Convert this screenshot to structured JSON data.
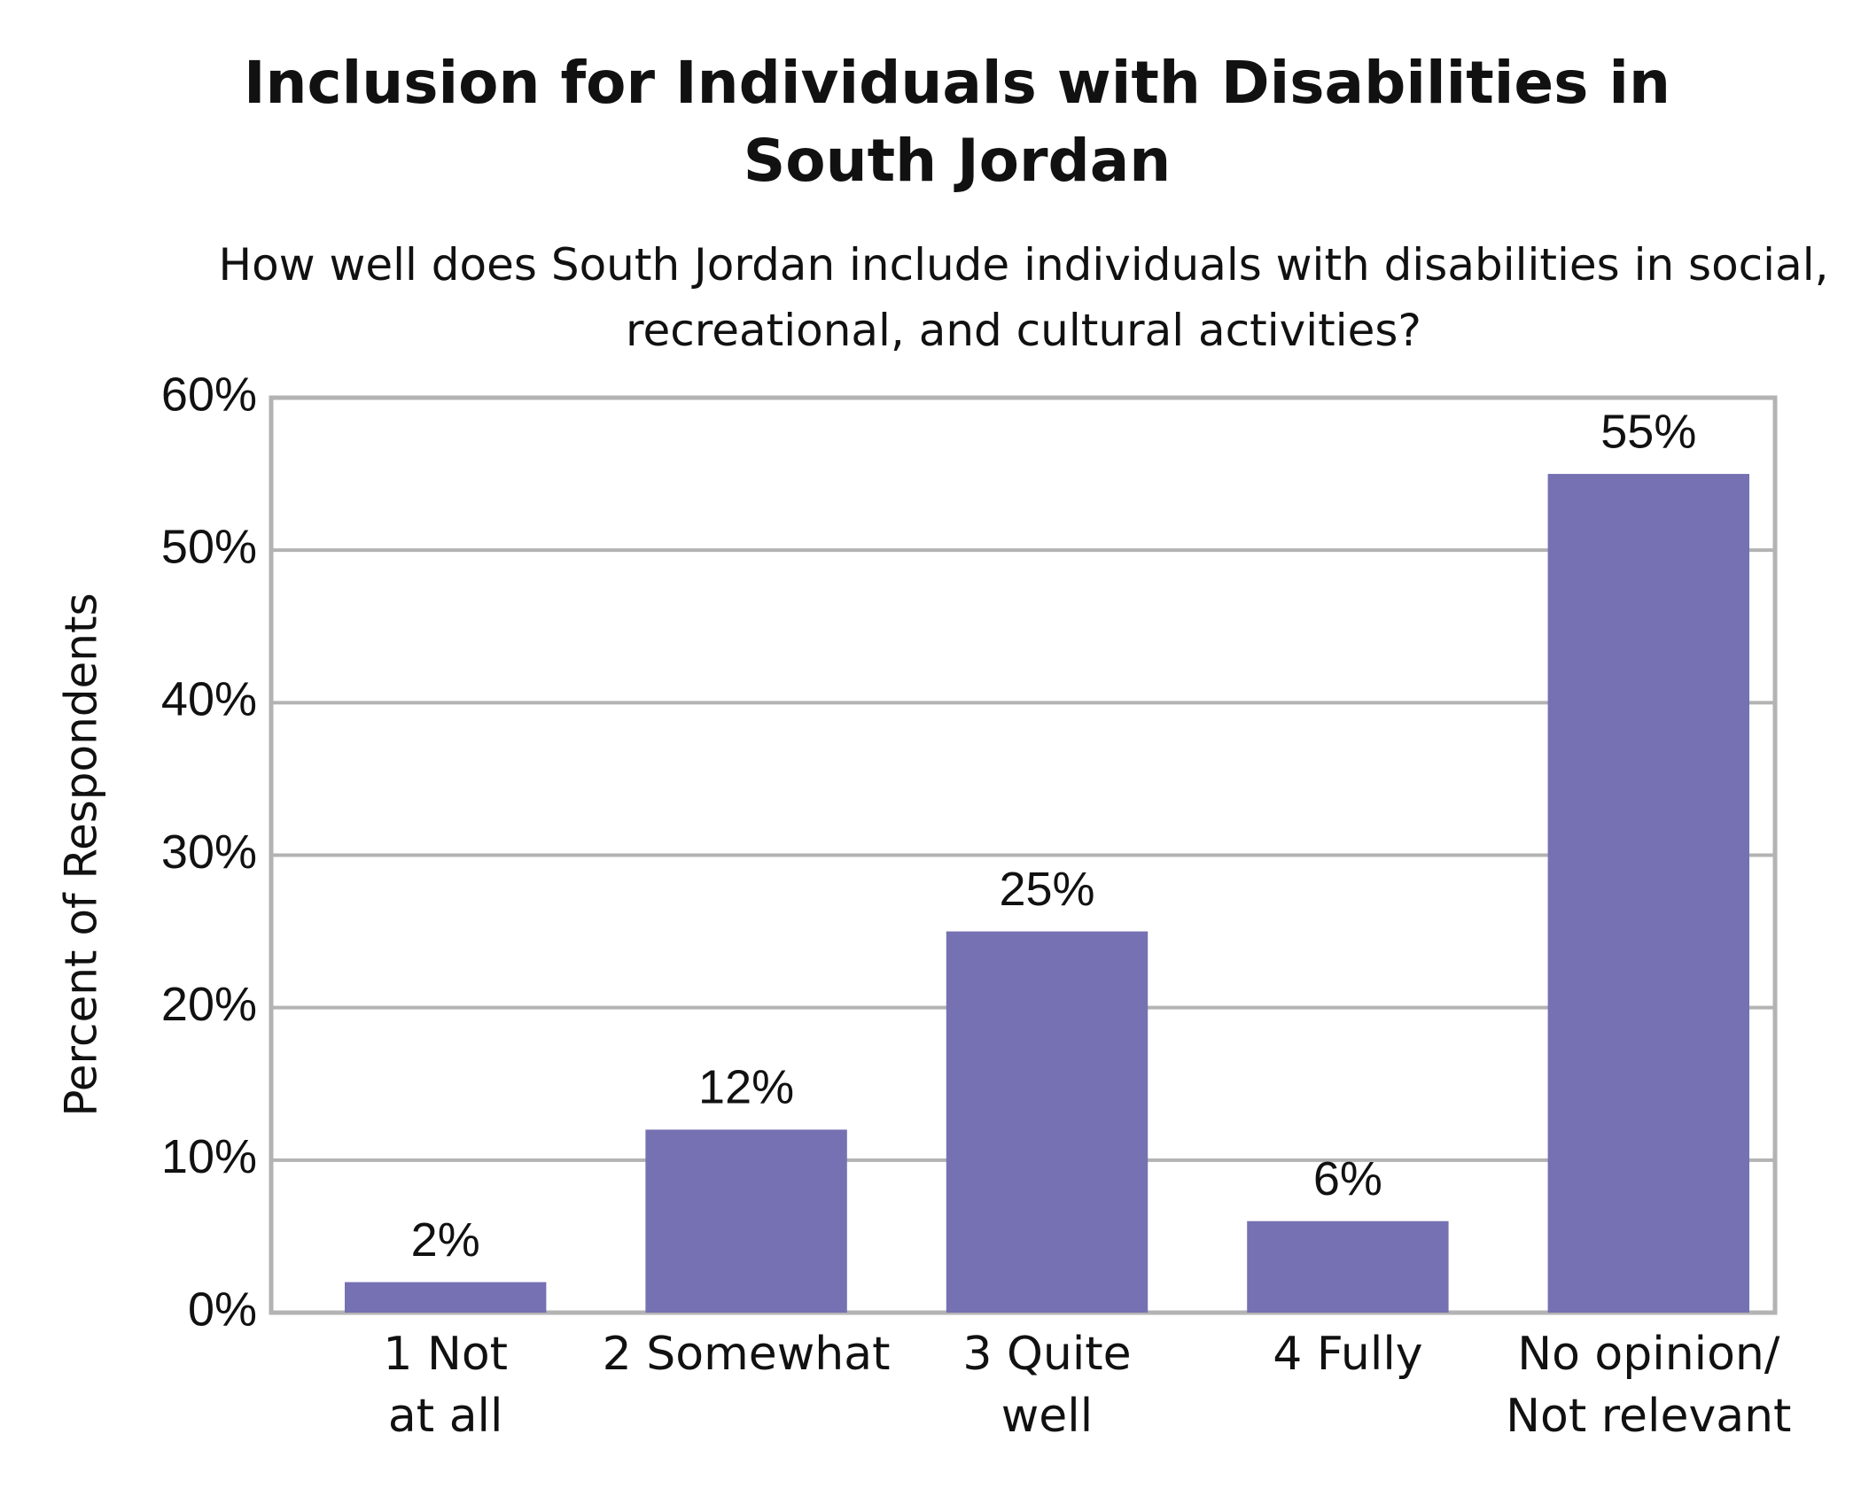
{
  "chart_data": {
    "type": "bar",
    "title": "Inclusion for Individuals with Disabilities in South Jordan",
    "subtitle": "How well does South Jordan include individuals with disabilities in social, recreational, and cultural activities?",
    "y_label": "Percent of Respondents",
    "categories": [
      "1 Not\nat all",
      "2 Somewhat",
      "3 Quite\nwell",
      "4 Fully",
      "No opinion/\nNot relevant"
    ],
    "values": [
      2,
      12,
      25,
      6,
      55
    ],
    "value_labels": [
      "2%",
      "12%",
      "25%",
      "6%",
      "55%"
    ],
    "color": "#7571b2",
    "ylim": [
      0,
      60
    ],
    "yticks": [
      {
        "value": 0,
        "label": "0%"
      },
      {
        "value": 10,
        "label": "10%"
      },
      {
        "value": 20,
        "label": "20%"
      },
      {
        "value": 30,
        "label": "30%"
      },
      {
        "value": 40,
        "label": "40%"
      },
      {
        "value": 50,
        "label": "50%"
      },
      {
        "value": 60,
        "label": "60%"
      }
    ],
    "grid": true
  }
}
